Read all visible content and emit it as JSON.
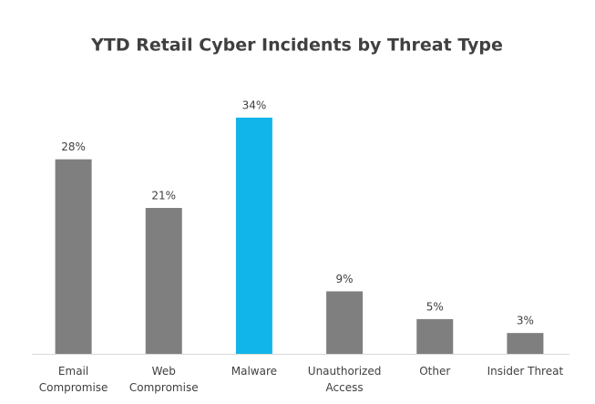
{
  "chart_data": {
    "type": "bar",
    "title": "YTD Retail Cyber Incidents by Threat Type",
    "categories": [
      "Email Compromise",
      "Web Compromise",
      "Malware",
      "Unauthorized Access",
      "Other",
      "Insider Threat"
    ],
    "values": [
      28,
      21,
      34,
      9,
      5,
      3
    ],
    "value_labels": [
      "28%",
      "21%",
      "34%",
      "9%",
      "5%",
      "3%"
    ],
    "colors": [
      "#7f7f7f",
      "#7f7f7f",
      "#12b5ea",
      "#7f7f7f",
      "#7f7f7f",
      "#7f7f7f"
    ]
  }
}
